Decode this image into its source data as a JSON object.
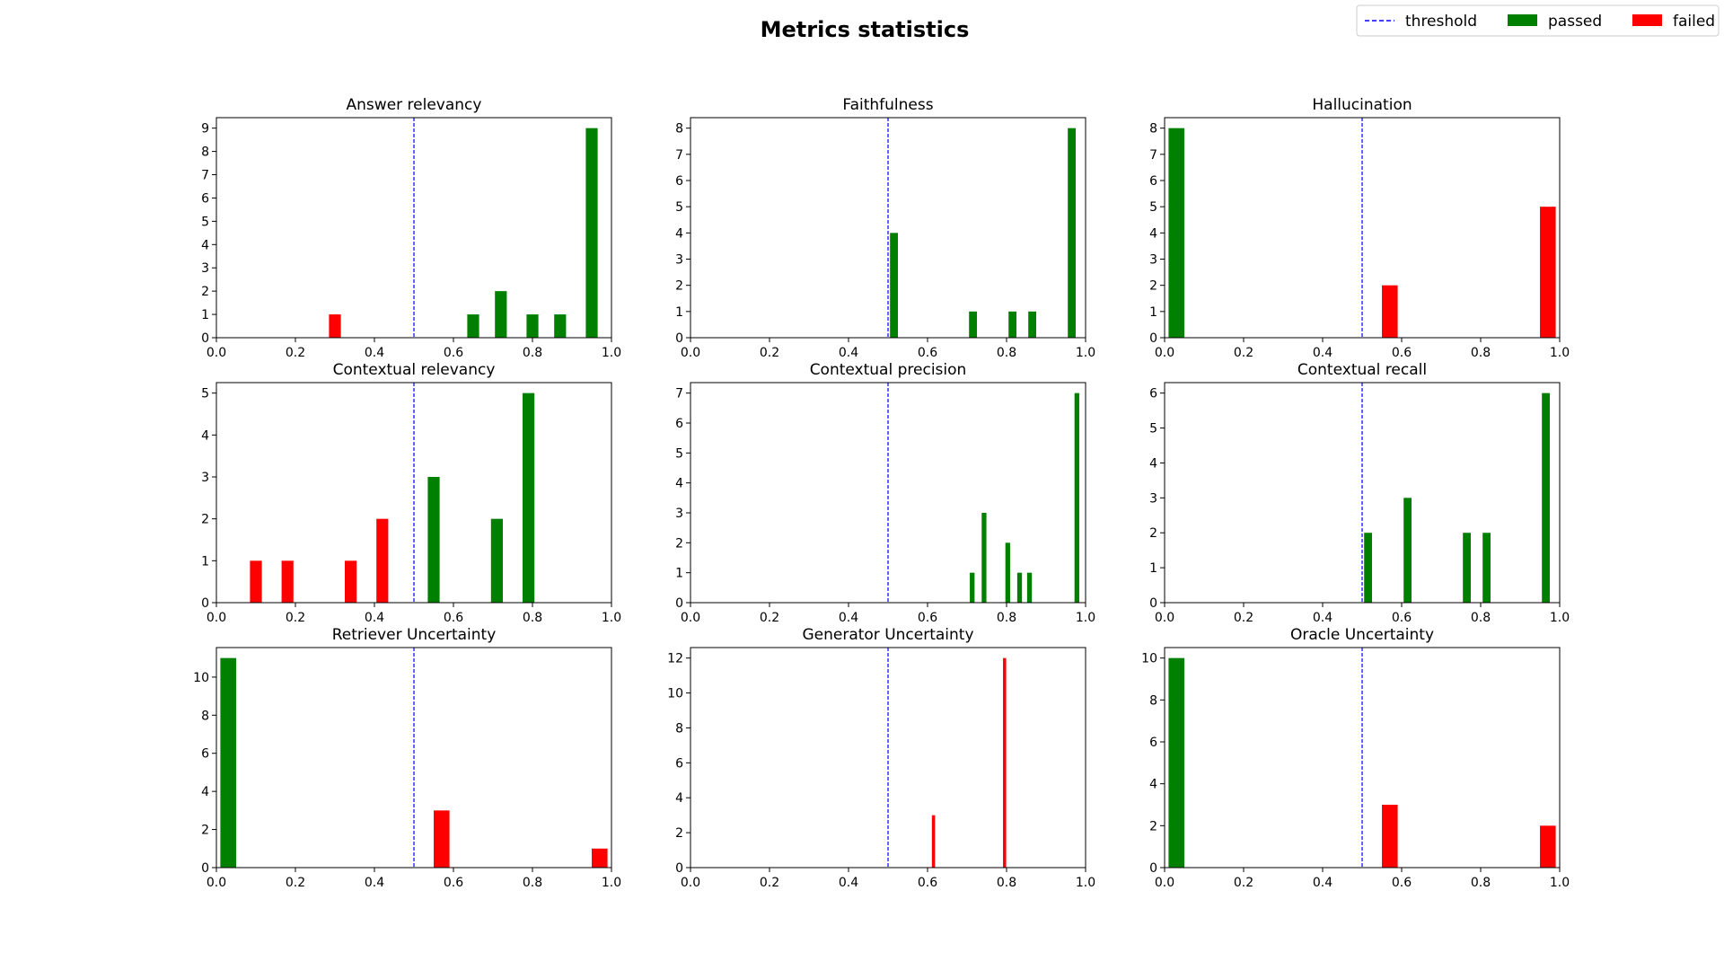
{
  "figure": {
    "title": "Metrics statistics",
    "legend": {
      "position": "top-right",
      "entries": [
        {
          "label": "threshold",
          "style": "dashed-line",
          "color": "#0000ff"
        },
        {
          "label": "passed",
          "style": "patch",
          "color": "#008000"
        },
        {
          "label": "failed",
          "style": "patch",
          "color": "#ff0000"
        }
      ]
    },
    "colors": {
      "passed": "#008000",
      "failed": "#ff0000",
      "threshold": "#0000ff"
    }
  },
  "chart_data": [
    {
      "type": "bar",
      "title": "Answer relevancy",
      "threshold": 0.5,
      "xlim": [
        0,
        1
      ],
      "ylim": [
        0,
        9.45
      ],
      "xticks": [
        "0.0",
        "0.2",
        "0.4",
        "0.6",
        "0.8",
        "1.0"
      ],
      "yticks": [
        0,
        1,
        2,
        3,
        4,
        5,
        6,
        7,
        8,
        9
      ],
      "bars": [
        {
          "x": 0.3,
          "width": 0.03,
          "value": 1,
          "status": "failed"
        },
        {
          "x": 0.65,
          "width": 0.03,
          "value": 1,
          "status": "passed"
        },
        {
          "x": 0.72,
          "width": 0.03,
          "value": 2,
          "status": "passed"
        },
        {
          "x": 0.8,
          "width": 0.03,
          "value": 1,
          "status": "passed"
        },
        {
          "x": 0.87,
          "width": 0.03,
          "value": 1,
          "status": "passed"
        },
        {
          "x": 0.95,
          "width": 0.03,
          "value": 9,
          "status": "passed"
        }
      ]
    },
    {
      "type": "bar",
      "title": "Faithfulness",
      "threshold": 0.5,
      "xlim": [
        0,
        1
      ],
      "ylim": [
        0,
        8.4
      ],
      "xticks": [
        "0.0",
        "0.2",
        "0.4",
        "0.6",
        "0.8",
        "1.0"
      ],
      "yticks": [
        0,
        1,
        2,
        3,
        4,
        5,
        6,
        7,
        8
      ],
      "bars": [
        {
          "x": 0.515,
          "width": 0.02,
          "value": 4,
          "status": "passed"
        },
        {
          "x": 0.715,
          "width": 0.02,
          "value": 1,
          "status": "passed"
        },
        {
          "x": 0.815,
          "width": 0.02,
          "value": 1,
          "status": "passed"
        },
        {
          "x": 0.865,
          "width": 0.02,
          "value": 1,
          "status": "passed"
        },
        {
          "x": 0.965,
          "width": 0.02,
          "value": 8,
          "status": "passed"
        }
      ]
    },
    {
      "type": "bar",
      "title": "Hallucination",
      "threshold": 0.5,
      "xlim": [
        0,
        1
      ],
      "ylim": [
        0,
        8.4
      ],
      "xticks": [
        "0.0",
        "0.2",
        "0.4",
        "0.6",
        "0.8",
        "1.0"
      ],
      "yticks": [
        0,
        1,
        2,
        3,
        4,
        5,
        6,
        7,
        8
      ],
      "bars": [
        {
          "x": 0.03,
          "width": 0.04,
          "value": 8,
          "status": "passed"
        },
        {
          "x": 0.57,
          "width": 0.04,
          "value": 2,
          "status": "failed"
        },
        {
          "x": 0.97,
          "width": 0.04,
          "value": 5,
          "status": "failed"
        }
      ]
    },
    {
      "type": "bar",
      "title": "Contextual relevancy",
      "threshold": 0.5,
      "xlim": [
        0,
        1
      ],
      "ylim": [
        0,
        5.25
      ],
      "xticks": [
        "0.0",
        "0.2",
        "0.4",
        "0.6",
        "0.8",
        "1.0"
      ],
      "yticks": [
        0,
        1,
        2,
        3,
        4,
        5
      ],
      "bars": [
        {
          "x": 0.1,
          "width": 0.03,
          "value": 1,
          "status": "failed"
        },
        {
          "x": 0.18,
          "width": 0.03,
          "value": 1,
          "status": "failed"
        },
        {
          "x": 0.34,
          "width": 0.03,
          "value": 1,
          "status": "failed"
        },
        {
          "x": 0.42,
          "width": 0.03,
          "value": 2,
          "status": "failed"
        },
        {
          "x": 0.55,
          "width": 0.03,
          "value": 3,
          "status": "passed"
        },
        {
          "x": 0.71,
          "width": 0.03,
          "value": 2,
          "status": "passed"
        },
        {
          "x": 0.79,
          "width": 0.03,
          "value": 5,
          "status": "passed"
        }
      ]
    },
    {
      "type": "bar",
      "title": "Contextual precision",
      "threshold": 0.5,
      "xlim": [
        0,
        1
      ],
      "ylim": [
        0,
        7.35
      ],
      "xticks": [
        "0.0",
        "0.2",
        "0.4",
        "0.6",
        "0.8",
        "1.0"
      ],
      "yticks": [
        0,
        1,
        2,
        3,
        4,
        5,
        6,
        7
      ],
      "bars": [
        {
          "x": 0.713,
          "width": 0.012,
          "value": 1,
          "status": "passed"
        },
        {
          "x": 0.743,
          "width": 0.012,
          "value": 3,
          "status": "passed"
        },
        {
          "x": 0.803,
          "width": 0.012,
          "value": 2,
          "status": "passed"
        },
        {
          "x": 0.833,
          "width": 0.012,
          "value": 1,
          "status": "passed"
        },
        {
          "x": 0.858,
          "width": 0.012,
          "value": 1,
          "status": "passed"
        },
        {
          "x": 0.978,
          "width": 0.012,
          "value": 7,
          "status": "passed"
        }
      ]
    },
    {
      "type": "bar",
      "title": "Contextual recall",
      "threshold": 0.5,
      "xlim": [
        0,
        1
      ],
      "ylim": [
        0,
        6.3
      ],
      "xticks": [
        "0.0",
        "0.2",
        "0.4",
        "0.6",
        "0.8",
        "1.0"
      ],
      "yticks": [
        0,
        1,
        2,
        3,
        4,
        5,
        6
      ],
      "bars": [
        {
          "x": 0.515,
          "width": 0.02,
          "value": 2,
          "status": "passed"
        },
        {
          "x": 0.615,
          "width": 0.02,
          "value": 3,
          "status": "passed"
        },
        {
          "x": 0.765,
          "width": 0.02,
          "value": 2,
          "status": "passed"
        },
        {
          "x": 0.815,
          "width": 0.02,
          "value": 2,
          "status": "passed"
        },
        {
          "x": 0.965,
          "width": 0.02,
          "value": 6,
          "status": "passed"
        }
      ]
    },
    {
      "type": "bar",
      "title": "Retriever Uncertainty",
      "threshold": 0.5,
      "xlim": [
        0,
        1
      ],
      "ylim": [
        0,
        11.55
      ],
      "xticks": [
        "0.0",
        "0.2",
        "0.4",
        "0.6",
        "0.8",
        "1.0"
      ],
      "yticks": [
        0,
        2,
        4,
        6,
        8,
        10
      ],
      "bars": [
        {
          "x": 0.03,
          "width": 0.04,
          "value": 11,
          "status": "passed"
        },
        {
          "x": 0.57,
          "width": 0.04,
          "value": 3,
          "status": "failed"
        },
        {
          "x": 0.97,
          "width": 0.04,
          "value": 1,
          "status": "failed"
        }
      ]
    },
    {
      "type": "bar",
      "title": "Generator Uncertainty",
      "threshold": 0.5,
      "xlim": [
        0,
        1
      ],
      "ylim": [
        0,
        12.6
      ],
      "xticks": [
        "0.0",
        "0.2",
        "0.4",
        "0.6",
        "0.8",
        "1.0"
      ],
      "yticks": [
        0,
        2,
        4,
        6,
        8,
        10,
        12
      ],
      "bars": [
        {
          "x": 0.615,
          "width": 0.008,
          "value": 3,
          "status": "failed"
        },
        {
          "x": 0.795,
          "width": 0.008,
          "value": 12,
          "status": "failed"
        }
      ]
    },
    {
      "type": "bar",
      "title": "Oracle Uncertainty",
      "threshold": 0.5,
      "xlim": [
        0,
        1
      ],
      "ylim": [
        0,
        10.5
      ],
      "xticks": [
        "0.0",
        "0.2",
        "0.4",
        "0.6",
        "0.8",
        "1.0"
      ],
      "yticks": [
        0,
        2,
        4,
        6,
        8,
        10
      ],
      "bars": [
        {
          "x": 0.03,
          "width": 0.04,
          "value": 10,
          "status": "passed"
        },
        {
          "x": 0.57,
          "width": 0.04,
          "value": 3,
          "status": "failed"
        },
        {
          "x": 0.97,
          "width": 0.04,
          "value": 2,
          "status": "failed"
        }
      ]
    }
  ]
}
